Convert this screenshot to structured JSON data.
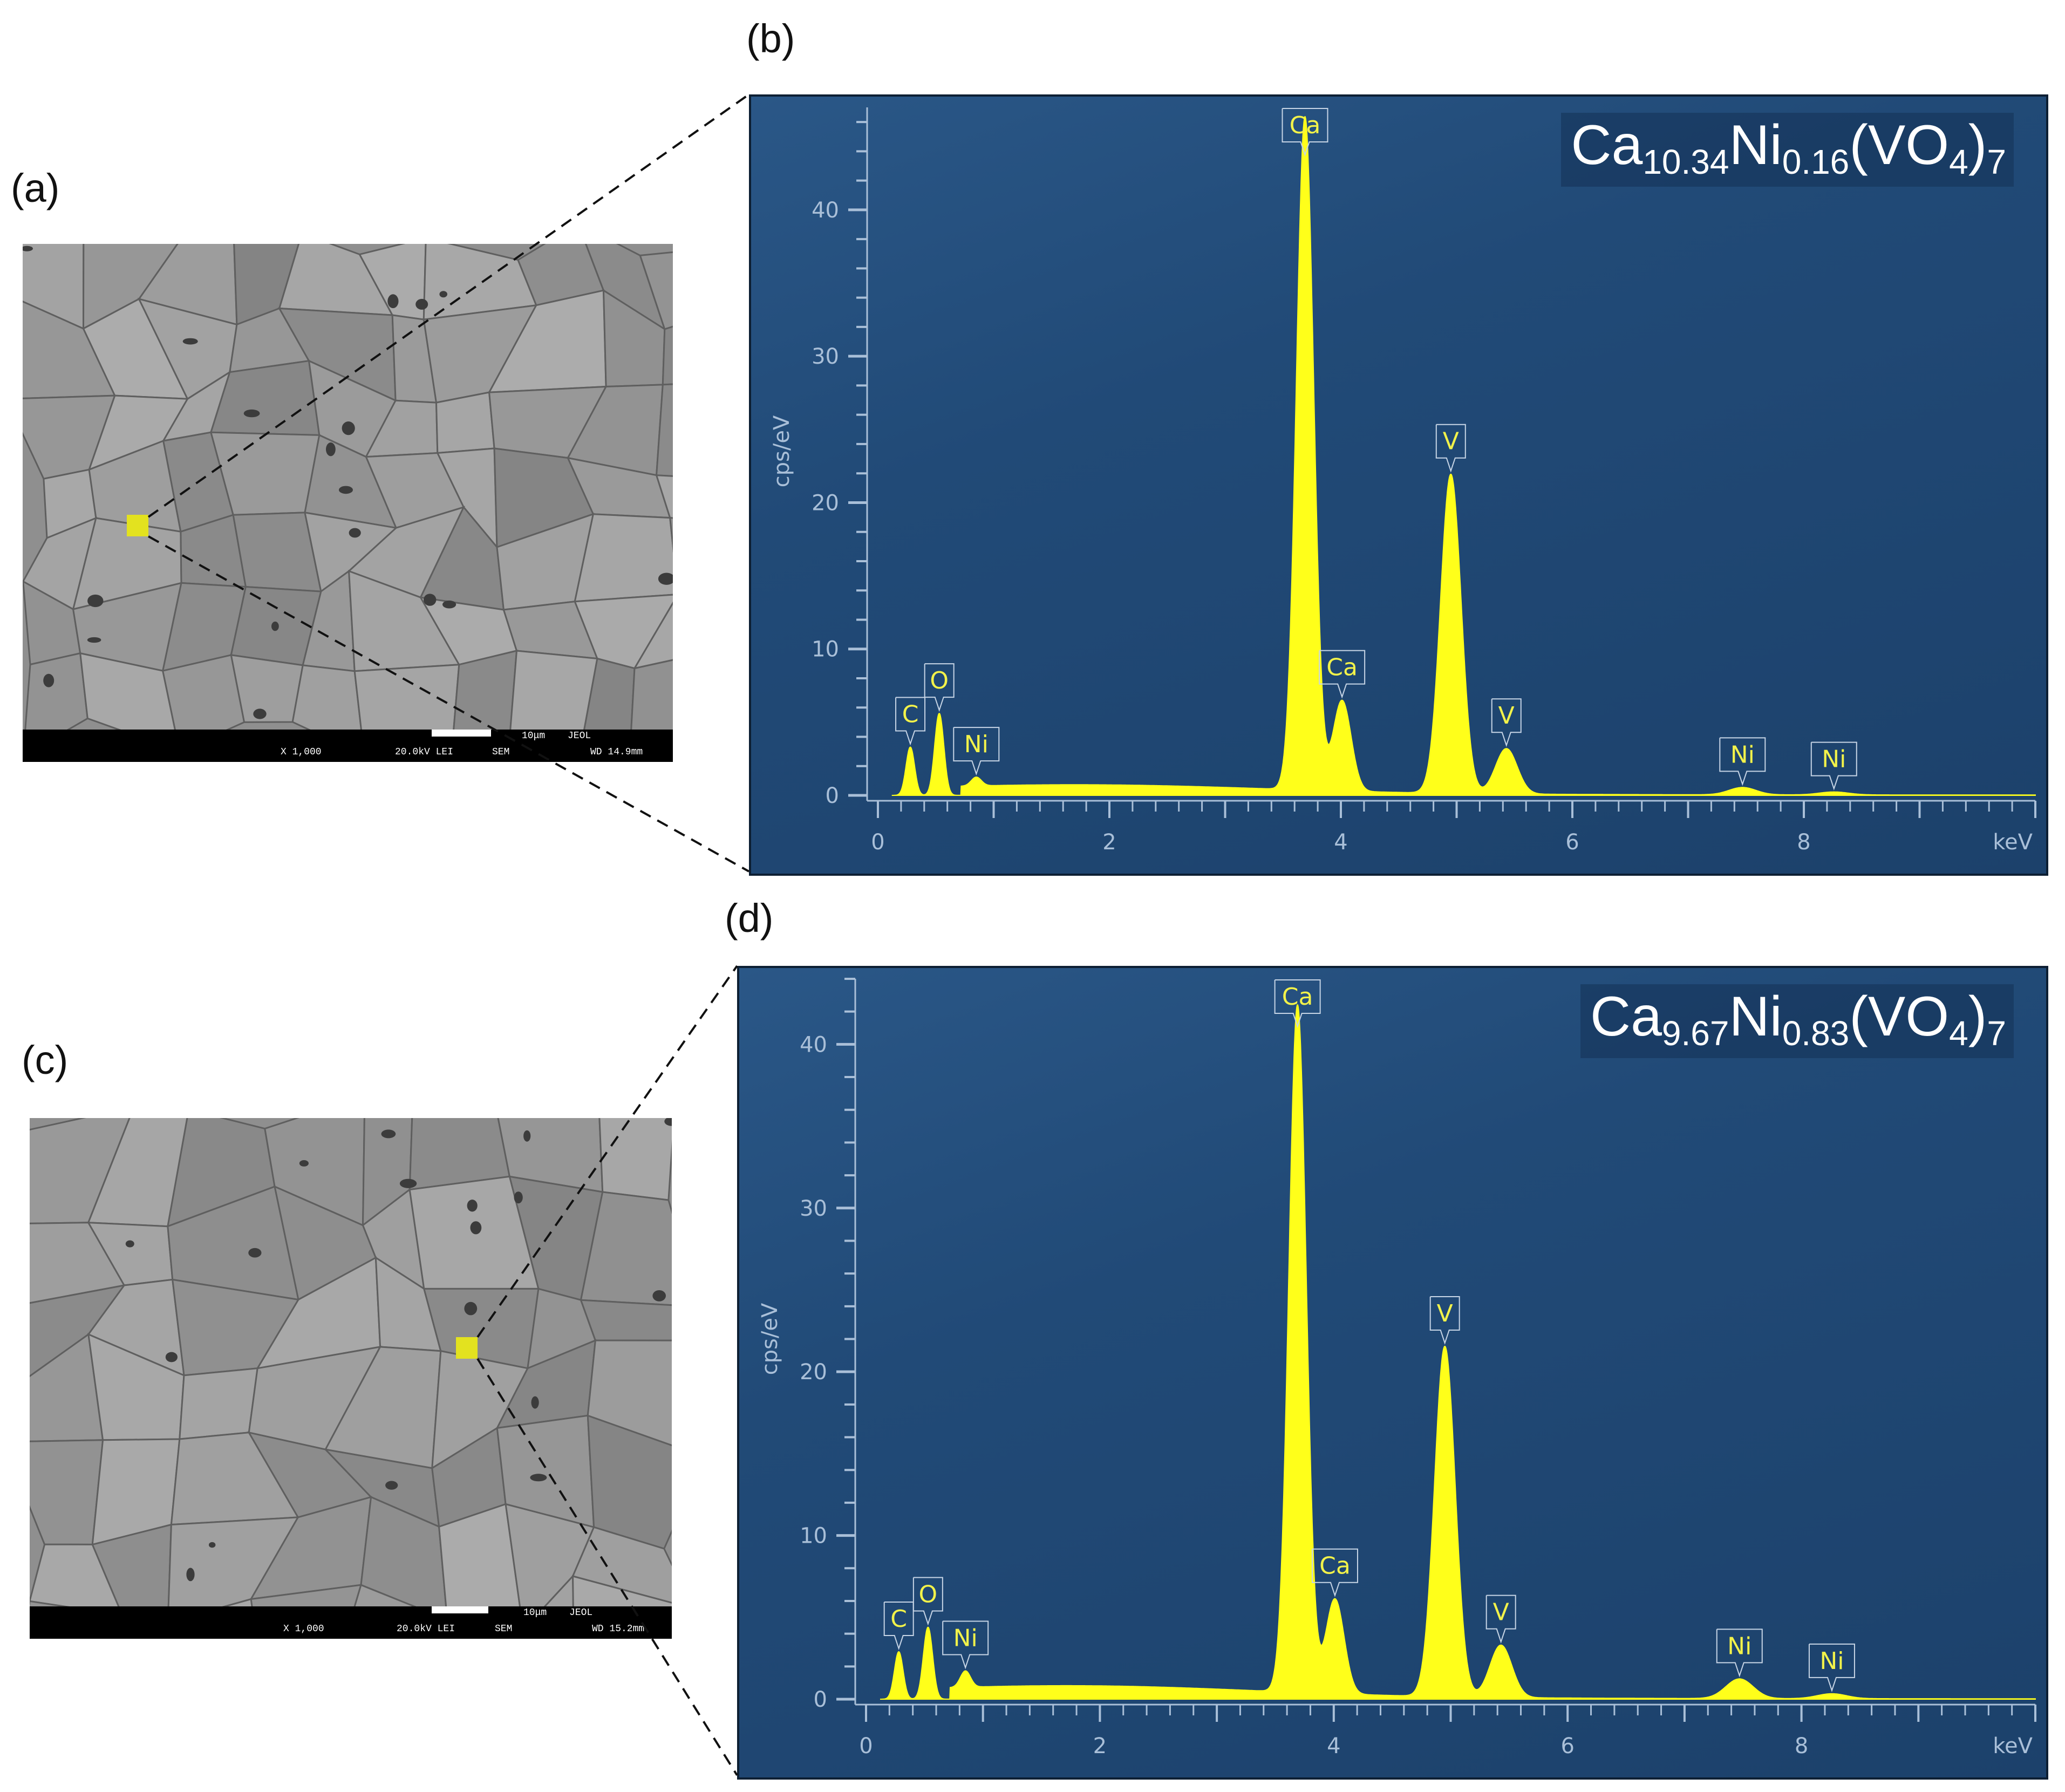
{
  "labels": {
    "a": "(a)",
    "b": "(b)",
    "c": "(c)",
    "d": "(d)"
  },
  "sem": [
    {
      "scale": "10μm",
      "maker": "JEOL",
      "mag": "X 1,000",
      "kv": "20.0kV LEI",
      "mode": "SEM",
      "wd": "WD 14.9mm"
    },
    {
      "scale": "10μm",
      "maker": "JEOL",
      "mag": "X 1,000",
      "kv": "20.0kV LEI",
      "mode": "SEM",
      "wd": "WD 15.2mm"
    }
  ],
  "colors": {
    "spectrum": "#ffff1a",
    "panel_bg": "#1f4672",
    "spot": "#e3e21f"
  },
  "chart_data": [
    {
      "type": "line",
      "panel": "(b)",
      "formula": {
        "p1": "Ca",
        "s1": "10.34",
        "p2": "Ni",
        "s2": "0.16",
        "p3": "(VO",
        "s3": "4",
        "p4": ")",
        "s4": "7"
      },
      "ylabel": "cps/eV",
      "xlabel": "keV",
      "xlim": [
        0,
        10
      ],
      "ylim": [
        0,
        47
      ],
      "xticks": [
        "0",
        "2",
        "4",
        "6",
        "8"
      ],
      "yticks": [
        "0",
        "10",
        "20",
        "30",
        "40"
      ],
      "background": 0.6,
      "peaks": [
        {
          "element": "C",
          "energy": 0.28,
          "height": 3.3
        },
        {
          "element": "O",
          "energy": 0.53,
          "height": 5.6
        },
        {
          "element": "Ni",
          "energy": 0.85,
          "height": 0.6
        },
        {
          "element": "Ca",
          "energy": 3.69,
          "height": 46.0
        },
        {
          "element": "Ca",
          "energy": 4.01,
          "height": 6.2
        },
        {
          "element": "V",
          "energy": 4.95,
          "height": 21.8
        },
        {
          "element": "V",
          "energy": 5.43,
          "height": 3.1
        },
        {
          "element": "Ni",
          "energy": 7.47,
          "height": 0.5
        },
        {
          "element": "Ni",
          "energy": 8.26,
          "height": 0.2
        }
      ]
    },
    {
      "type": "line",
      "panel": "(d)",
      "formula": {
        "p1": "Ca",
        "s1": "9.67",
        "p2": "Ni",
        "s2": "0.83",
        "p3": "(VO",
        "s3": "4",
        "p4": ")",
        "s4": "7"
      },
      "ylabel": "cps/eV",
      "xlabel": "keV",
      "xlim": [
        0,
        10
      ],
      "ylim": [
        0,
        44
      ],
      "xticks": [
        "0",
        "2",
        "4",
        "6",
        "8"
      ],
      "yticks": [
        "0",
        "10",
        "20",
        "30",
        "40"
      ],
      "background": 0.7,
      "peaks": [
        {
          "element": "C",
          "energy": 0.28,
          "height": 2.9
        },
        {
          "element": "O",
          "energy": 0.53,
          "height": 4.4
        },
        {
          "element": "Ni",
          "energy": 0.85,
          "height": 1.0
        },
        {
          "element": "Ca",
          "energy": 3.69,
          "height": 42.0
        },
        {
          "element": "Ca",
          "energy": 4.01,
          "height": 5.8
        },
        {
          "element": "V",
          "energy": 4.95,
          "height": 21.4
        },
        {
          "element": "V",
          "energy": 5.43,
          "height": 3.2
        },
        {
          "element": "Ni",
          "energy": 7.47,
          "height": 1.2
        },
        {
          "element": "Ni",
          "energy": 8.26,
          "height": 0.3
        }
      ]
    }
  ]
}
